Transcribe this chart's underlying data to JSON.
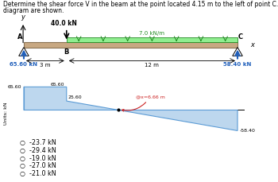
{
  "title_line1": "Determine the shear force V in the beam at the point located 4.15 m to the left of point C. The ground reactions and shear-force",
  "title_line2": "diagram are shown.",
  "title_fontsize": 5.5,
  "beam_fill": "#C8A882",
  "beam_edge": "#8B7355",
  "load_fill": "#90EE90",
  "load_edge": "#228B22",
  "reaction_color": "#1F5FBB",
  "highlight_color": "#CC2222",
  "shear_fill_color": "#BDD7EE",
  "shear_edge_color": "#5B9BD5",
  "bg_color": "#FFFFFF",
  "point_load_label": "40.0 kN",
  "load_magnitude_label": "7.0 kN/m",
  "reaction_left_label": "65.60 kN",
  "reaction_right_label": "58.40 kN",
  "shear_65_left": "65.60",
  "shear_65_right": "65.60",
  "shear_25": "25.60",
  "shear_neg58": "-58.40",
  "annotation_text": "@x=6.66 m",
  "dim_AB": "3 m",
  "dim_BC": "12 m",
  "options": [
    "-23.7 kN",
    "-29.4 kN",
    "-19.0 kN",
    "-27.0 kN",
    "-21.0 kN"
  ],
  "units_label": "Units: kN"
}
